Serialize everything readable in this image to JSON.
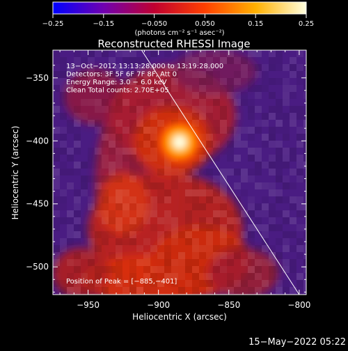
{
  "chart_data": {
    "type": "heatmap",
    "title": "Reconstructed RHESSI Image",
    "xlabel": "Heliocentric X (arcsec)",
    "ylabel": "Heliocentric Y (arcsec)",
    "xlim": [
      -975,
      -795
    ],
    "ylim": [
      -522,
      -328
    ],
    "x_ticks": [
      -950,
      -900,
      -850,
      -800
    ],
    "x_tick_labels": [
      "−950",
      "−900",
      "−850",
      "−800"
    ],
    "y_ticks": [
      -350,
      -400,
      -450,
      -500
    ],
    "y_tick_labels": [
      "−350",
      "−400",
      "−450",
      "−500"
    ],
    "colorbar": {
      "range": [
        -0.25,
        0.25
      ],
      "ticks": [
        -0.25,
        -0.15,
        -0.05,
        0.05,
        0.15,
        0.25
      ],
      "tick_labels": [
        "−0.25",
        "−0.15",
        "−0.050",
        "0.050",
        "0.15",
        "0.25"
      ],
      "unit_label": "(photons cm⁻² s⁻¹ asec⁻²)",
      "colors": [
        "#0000ff",
        "#7000b0",
        "#c00030",
        "#ff4000",
        "#ffb000",
        "#ffffe0"
      ]
    },
    "annotations": [
      "13−Oct−2012 13:13:28.000 to 13:19:28.000",
      "Detectors: 3F 5F 6F 7F 8F, Att 0",
      "Energy Range: 3.0 − 6.0 keV",
      "Clean     Total counts: 2.70E+05"
    ],
    "peak_label": "Position of Peak = [−885,−401]",
    "peak": [
      -885,
      -401
    ],
    "limb": [
      [
        -912,
        -328
      ],
      [
        -800,
        -522
      ]
    ]
  },
  "footer_date": "15−May−2022 05:22"
}
